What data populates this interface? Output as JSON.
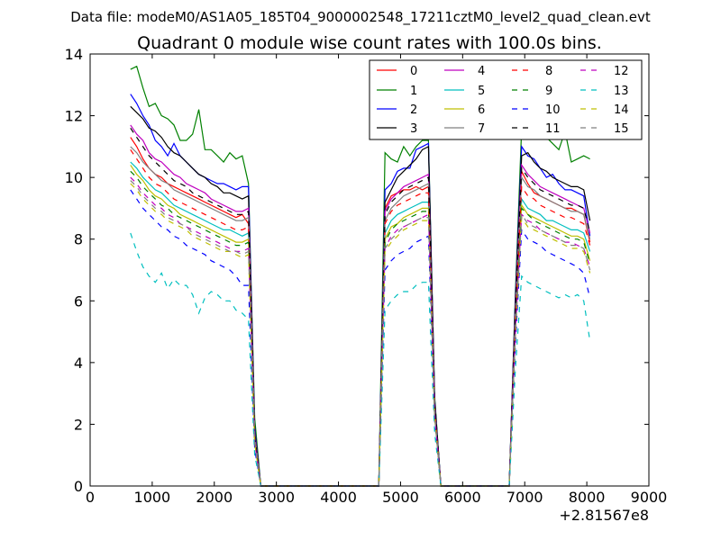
{
  "suptitle": "Data file: modeM0/AS1A05_185T04_9000002548_17211cztM0_level2_quad_clean.evt",
  "chart_data": {
    "type": "line",
    "title": "Quadrant 0 module wise count rates with 100.0s bins.",
    "xlabel": "",
    "ylabel": "",
    "x_offset_label": "+2.81567e8",
    "xlim": [
      0,
      9000
    ],
    "ylim": [
      0,
      14
    ],
    "xticks": [
      "0",
      "1000",
      "2000",
      "3000",
      "4000",
      "5000",
      "6000",
      "7000",
      "8000",
      "9000"
    ],
    "yticks": [
      "0",
      "2",
      "4",
      "6",
      "8",
      "10",
      "12",
      "14"
    ],
    "grid": false,
    "legend": {
      "placement": "top-right",
      "columns": 4,
      "labels": [
        "0",
        "1",
        "2",
        "3",
        "4",
        "5",
        "6",
        "7",
        "8",
        "9",
        "10",
        "11",
        "12",
        "13",
        "14",
        "15"
      ]
    },
    "segments": [
      {
        "x": [
          650,
          750,
          850,
          950,
          1050,
          1150,
          1250,
          1350,
          1450,
          1550,
          1650,
          1750,
          1850,
          1950,
          2050,
          2150,
          2250,
          2350,
          2450,
          2550,
          2650,
          2750
        ]
      },
      {
        "x": [
          4650,
          4750,
          4850,
          4950,
          5050,
          5150,
          5250,
          5350,
          5450,
          5550,
          5650
        ]
      },
      {
        "x": [
          6750,
          6850,
          6950,
          7050,
          7150,
          7250,
          7350,
          7450,
          7550,
          7650,
          7750,
          7850,
          7950,
          8050
        ]
      }
    ],
    "gaps": {
      "x": [
        2850,
        2950,
        3050,
        3150,
        3250,
        3350,
        3450,
        3550,
        3650,
        3750,
        3850,
        3950,
        4050,
        4150,
        4250,
        4350,
        4450,
        4550,
        5750,
        5850,
        5950,
        6050,
        6150,
        6250,
        6350,
        6450,
        6550,
        6650
      ],
      "value": 0
    },
    "series": [
      {
        "name": "0",
        "color": "#ff0000",
        "dash": false,
        "segments": [
          [
            11.3,
            11.0,
            10.6,
            10.3,
            10.1,
            10.0,
            9.8,
            9.7,
            9.6,
            9.5,
            9.4,
            9.3,
            9.2,
            9.1,
            9.0,
            8.9,
            8.8,
            8.7,
            8.8,
            8.5,
            1.5,
            0
          ],
          [
            0,
            9.0,
            9.4,
            9.5,
            9.6,
            9.6,
            9.7,
            9.6,
            9.7,
            2.5,
            0
          ],
          [
            0,
            5.5,
            10.2,
            9.8,
            9.5,
            9.4,
            9.3,
            9.2,
            9.1,
            9.0,
            9.0,
            8.9,
            8.8,
            7.9
          ]
        ]
      },
      {
        "name": "1",
        "color": "#008000",
        "dash": false,
        "segments": [
          [
            13.5,
            13.6,
            12.9,
            12.3,
            12.4,
            12.0,
            11.9,
            11.7,
            11.2,
            11.2,
            11.4,
            12.2,
            10.9,
            10.9,
            10.7,
            10.5,
            10.8,
            10.6,
            10.7,
            9.8,
            2.2,
            0
          ],
          [
            0,
            10.8,
            10.6,
            10.5,
            11.0,
            10.7,
            11.0,
            11.2,
            11.2,
            2.9,
            0
          ],
          [
            0,
            6.3,
            11.6,
            11.5,
            11.7,
            11.6,
            11.3,
            11.1,
            10.9,
            11.5,
            10.5,
            10.6,
            10.7,
            10.6
          ]
        ]
      },
      {
        "name": "2",
        "color": "#0000ff",
        "dash": false,
        "segments": [
          [
            12.7,
            12.4,
            12.0,
            11.7,
            11.2,
            11.0,
            10.7,
            11.1,
            10.7,
            10.5,
            10.3,
            10.1,
            10.0,
            9.9,
            9.8,
            9.8,
            9.7,
            9.6,
            9.7,
            9.7,
            1.9,
            0
          ],
          [
            0,
            9.6,
            9.8,
            10.2,
            10.3,
            10.3,
            10.9,
            11.0,
            11.1,
            2.8,
            0
          ],
          [
            0,
            6.1,
            11.0,
            10.7,
            10.6,
            10.3,
            10.0,
            10.1,
            9.8,
            9.6,
            9.6,
            9.5,
            9.4,
            8.1
          ]
        ]
      },
      {
        "name": "3",
        "color": "#000000",
        "dash": false,
        "segments": [
          [
            12.3,
            12.1,
            11.9,
            11.6,
            11.5,
            11.3,
            11.0,
            10.8,
            10.7,
            10.5,
            10.3,
            10.1,
            10.0,
            9.8,
            9.7,
            9.5,
            9.5,
            9.4,
            9.3,
            9.4,
            1.8,
            0
          ],
          [
            0,
            9.2,
            9.6,
            10.0,
            10.2,
            10.4,
            10.6,
            10.9,
            11.0,
            2.8,
            0
          ],
          [
            0,
            6.0,
            10.7,
            10.8,
            10.5,
            10.3,
            10.2,
            10.0,
            9.9,
            9.8,
            9.7,
            9.7,
            9.6,
            8.6
          ]
        ]
      },
      {
        "name": "4",
        "color": "#bf00bf",
        "dash": false,
        "segments": [
          [
            11.7,
            11.4,
            11.2,
            10.8,
            10.6,
            10.5,
            10.3,
            10.1,
            10.0,
            9.8,
            9.7,
            9.6,
            9.5,
            9.3,
            9.2,
            9.1,
            9.0,
            8.9,
            8.9,
            9.0,
            1.7,
            0
          ],
          [
            0,
            8.9,
            9.3,
            9.5,
            9.7,
            9.8,
            9.9,
            10.0,
            10.1,
            2.6,
            0
          ],
          [
            0,
            5.8,
            10.4,
            10.1,
            9.9,
            9.7,
            9.6,
            9.5,
            9.4,
            9.3,
            9.2,
            9.1,
            9.0,
            8.2
          ]
        ]
      },
      {
        "name": "5",
        "color": "#00bfbf",
        "dash": false,
        "segments": [
          [
            10.5,
            10.3,
            10.0,
            9.8,
            9.6,
            9.5,
            9.3,
            9.1,
            9.0,
            8.9,
            8.8,
            8.7,
            8.6,
            8.5,
            8.4,
            8.3,
            8.3,
            8.2,
            8.1,
            8.2,
            1.5,
            0
          ],
          [
            0,
            8.2,
            8.6,
            8.8,
            8.9,
            9.0,
            9.1,
            9.2,
            9.2,
            2.4,
            0
          ],
          [
            0,
            5.3,
            9.3,
            9.0,
            8.9,
            8.8,
            8.6,
            8.6,
            8.5,
            8.4,
            8.3,
            8.3,
            8.2,
            7.6
          ]
        ]
      },
      {
        "name": "6",
        "color": "#bfbf00",
        "dash": false,
        "segments": [
          [
            10.4,
            10.1,
            9.9,
            9.6,
            9.4,
            9.3,
            9.1,
            9.0,
            8.8,
            8.7,
            8.6,
            8.5,
            8.4,
            8.3,
            8.2,
            8.1,
            8.0,
            7.9,
            7.9,
            8.0,
            1.5,
            0
          ],
          [
            0,
            8.0,
            8.4,
            8.5,
            8.7,
            8.8,
            8.9,
            9.0,
            9.0,
            2.4,
            0
          ],
          [
            0,
            5.2,
            9.1,
            8.8,
            8.7,
            8.6,
            8.5,
            8.4,
            8.3,
            8.2,
            8.1,
            8.1,
            8.0,
            7.3
          ]
        ]
      },
      {
        "name": "7",
        "color": "#808080",
        "dash": false,
        "segments": [
          [
            11.0,
            10.8,
            10.5,
            10.3,
            10.1,
            9.9,
            9.8,
            9.6,
            9.5,
            9.4,
            9.3,
            9.2,
            9.1,
            9.0,
            8.9,
            8.8,
            8.7,
            8.6,
            8.6,
            8.7,
            1.6,
            0
          ],
          [
            0,
            8.6,
            9.0,
            9.2,
            9.4,
            9.5,
            9.6,
            9.7,
            9.8,
            2.5,
            0
          ],
          [
            0,
            5.6,
            10.0,
            9.7,
            9.6,
            9.4,
            9.3,
            9.2,
            9.1,
            9.0,
            8.9,
            8.9,
            8.8,
            8.0
          ]
        ]
      },
      {
        "name": "8",
        "color": "#ff0000",
        "dash": true,
        "segments": [
          [
            10.9,
            10.6,
            10.3,
            10.0,
            9.8,
            9.7,
            9.5,
            9.3,
            9.2,
            9.1,
            9.0,
            8.9,
            8.8,
            8.7,
            8.6,
            8.5,
            8.4,
            8.3,
            8.3,
            8.4,
            1.5,
            0
          ],
          [
            0,
            8.5,
            8.9,
            9.1,
            9.2,
            9.3,
            9.4,
            9.5,
            9.5,
            2.5,
            0
          ],
          [
            0,
            5.4,
            9.7,
            9.4,
            9.3,
            9.1,
            9.0,
            8.9,
            8.8,
            8.7,
            8.7,
            8.6,
            8.5,
            7.8
          ]
        ]
      },
      {
        "name": "9",
        "color": "#008000",
        "dash": true,
        "segments": [
          [
            10.2,
            10.0,
            9.7,
            9.5,
            9.3,
            9.1,
            9.0,
            8.8,
            8.7,
            8.6,
            8.5,
            8.4,
            8.3,
            8.2,
            8.1,
            8.0,
            7.9,
            7.8,
            7.8,
            7.9,
            1.4,
            0
          ],
          [
            0,
            7.9,
            8.3,
            8.5,
            8.6,
            8.7,
            8.8,
            8.9,
            8.9,
            2.3,
            0
          ],
          [
            0,
            5.1,
            9.0,
            8.8,
            8.6,
            8.5,
            8.4,
            8.3,
            8.2,
            8.1,
            8.0,
            8.0,
            7.9,
            7.2
          ]
        ]
      },
      {
        "name": "10",
        "color": "#0000ff",
        "dash": true,
        "segments": [
          [
            9.6,
            9.3,
            9.0,
            8.8,
            8.6,
            8.4,
            8.3,
            8.1,
            8.0,
            7.8,
            7.7,
            7.6,
            7.5,
            7.3,
            7.2,
            7.1,
            7.0,
            6.8,
            6.5,
            6.5,
            1.2,
            0
          ],
          [
            0,
            7.0,
            7.3,
            7.5,
            7.6,
            7.7,
            7.9,
            8.0,
            8.1,
            2.1,
            0
          ],
          [
            0,
            4.6,
            8.3,
            8.0,
            7.9,
            7.8,
            7.6,
            7.5,
            7.4,
            7.3,
            7.2,
            7.1,
            6.9,
            6.1
          ]
        ]
      },
      {
        "name": "11",
        "color": "#000000",
        "dash": true,
        "segments": [
          [
            11.6,
            11.3,
            11.0,
            10.7,
            10.5,
            10.3,
            10.1,
            9.9,
            9.8,
            9.7,
            9.5,
            9.4,
            9.3,
            9.2,
            9.1,
            9.0,
            8.9,
            8.8,
            8.8,
            8.9,
            1.6,
            0
          ],
          [
            0,
            8.8,
            9.2,
            9.4,
            9.6,
            9.7,
            9.8,
            9.9,
            10.0,
            2.6,
            0
          ],
          [
            0,
            5.7,
            10.3,
            10.0,
            9.8,
            9.6,
            9.5,
            9.4,
            9.3,
            9.2,
            9.1,
            9.1,
            9.0,
            8.2
          ]
        ]
      },
      {
        "name": "12",
        "color": "#bf00bf",
        "dash": true,
        "segments": [
          [
            10.0,
            9.8,
            9.5,
            9.3,
            9.1,
            9.0,
            8.8,
            8.7,
            8.5,
            8.4,
            8.3,
            8.2,
            8.1,
            8.0,
            7.9,
            7.8,
            7.7,
            7.6,
            7.6,
            7.7,
            1.4,
            0
          ],
          [
            0,
            7.7,
            8.1,
            8.3,
            8.4,
            8.5,
            8.6,
            8.7,
            8.8,
            2.3,
            0
          ],
          [
            0,
            5.0,
            8.8,
            8.6,
            8.5,
            8.3,
            8.2,
            8.1,
            8.0,
            7.9,
            7.9,
            7.8,
            7.7,
            7.1
          ]
        ]
      },
      {
        "name": "13",
        "color": "#00bfbf",
        "dash": true,
        "segments": [
          [
            8.2,
            7.6,
            7.1,
            6.8,
            6.6,
            6.9,
            6.4,
            6.7,
            6.5,
            6.5,
            6.2,
            5.6,
            6.1,
            6.3,
            6.2,
            6.0,
            6.0,
            5.7,
            5.6,
            5.4,
            1.0,
            0
          ],
          [
            0,
            5.7,
            6.0,
            6.2,
            6.3,
            6.3,
            6.5,
            6.6,
            6.6,
            1.7,
            0
          ],
          [
            0,
            3.8,
            6.8,
            6.6,
            6.5,
            6.4,
            6.3,
            6.2,
            6.1,
            6.2,
            6.1,
            6.2,
            6.0,
            4.7
          ]
        ]
      },
      {
        "name": "14",
        "color": "#bfbf00",
        "dash": true,
        "segments": [
          [
            9.8,
            9.6,
            9.3,
            9.1,
            8.9,
            8.8,
            8.6,
            8.5,
            8.4,
            8.3,
            8.1,
            8.0,
            7.9,
            7.8,
            7.7,
            7.6,
            7.6,
            7.5,
            7.4,
            7.5,
            1.4,
            0
          ],
          [
            0,
            7.6,
            7.9,
            8.1,
            8.3,
            8.4,
            8.5,
            8.6,
            8.6,
            2.2,
            0
          ],
          [
            0,
            4.9,
            8.7,
            8.4,
            8.3,
            8.2,
            8.1,
            8.0,
            7.9,
            7.8,
            7.7,
            7.7,
            7.6,
            6.9
          ]
        ]
      },
      {
        "name": "15",
        "color": "#808080",
        "dash": true,
        "segments": [
          [
            9.9,
            9.7,
            9.4,
            9.2,
            9.0,
            8.9,
            8.7,
            8.6,
            8.5,
            8.4,
            8.2,
            8.1,
            8.0,
            7.9,
            7.8,
            7.7,
            7.6,
            7.6,
            7.5,
            7.6,
            1.4,
            0
          ],
          [
            0,
            7.7,
            8.0,
            8.2,
            8.4,
            8.5,
            8.6,
            8.7,
            8.7,
            2.3,
            0
          ],
          [
            0,
            5.0,
            8.8,
            8.5,
            8.4,
            8.3,
            8.2,
            8.1,
            8.0,
            7.9,
            7.8,
            7.8,
            7.7,
            7.0
          ]
        ]
      }
    ]
  }
}
